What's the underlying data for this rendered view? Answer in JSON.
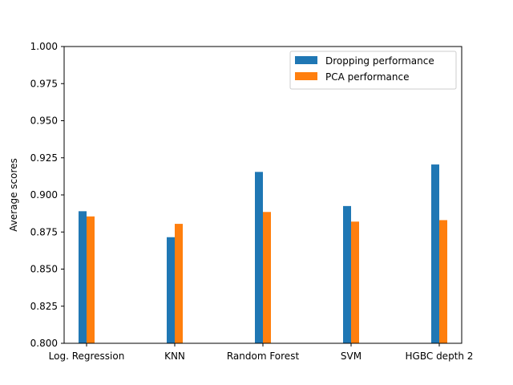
{
  "chart_data": {
    "type": "bar",
    "title": "",
    "xlabel": "",
    "ylabel": "Average scores",
    "ylim": [
      0.8,
      1.0
    ],
    "yticks": [
      "0.800",
      "0.825",
      "0.850",
      "0.875",
      "0.900",
      "0.925",
      "0.950",
      "0.975",
      "1.000"
    ],
    "categories": [
      "Log. Regression",
      "KNN",
      "Random Forest",
      "SVM",
      "HGBC depth 2"
    ],
    "series": [
      {
        "name": "Dropping performance",
        "color": "#1f77b4",
        "values": [
          0.889,
          0.8715,
          0.9155,
          0.8925,
          0.9205
        ]
      },
      {
        "name": "PCA performance",
        "color": "#ff7f0e",
        "values": [
          0.8855,
          0.8805,
          0.8885,
          0.882,
          0.883
        ]
      }
    ],
    "grid": false,
    "legend": "top-right"
  }
}
